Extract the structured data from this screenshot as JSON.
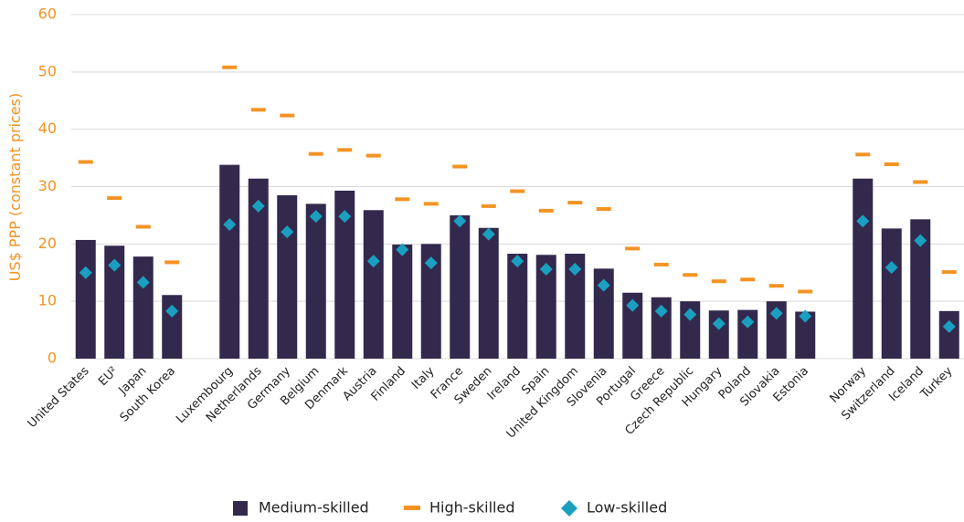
{
  "chart_data": {
    "type": "bar",
    "y_label": "US$ PPP (constant prices)",
    "categories": [
      "United States",
      "EU²",
      "Japan",
      "South Korea",
      null,
      "Luxembourg",
      "Netherlands",
      "Germany",
      "Belgium",
      "Denmark",
      "Austria",
      "Finland",
      "Italy",
      "France",
      "Sweden",
      "Ireland",
      "Spain",
      "United Kingdom",
      "Slovenia",
      "Portugal",
      "Greece",
      "Czech Republic",
      "Hungary",
      "Poland",
      "Slovakia",
      "Estonia",
      null,
      "Norway",
      "Switzerland",
      "Iceland",
      "Turkey"
    ],
    "series": [
      {
        "name": "Medium-skilled",
        "type": "bar",
        "color": "#33294d",
        "values": [
          20.7,
          19.7,
          17.8,
          11.1,
          null,
          33.8,
          31.4,
          28.5,
          27,
          29.3,
          25.9,
          19.9,
          20,
          25,
          22.8,
          18.3,
          18.1,
          18.3,
          15.7,
          11.5,
          10.7,
          10,
          8.4,
          8.5,
          10,
          8.2,
          null,
          31.4,
          22.7,
          24.3,
          8.3
        ]
      },
      {
        "name": "High-skilled",
        "type": "dash",
        "color": "#f39324",
        "values": [
          34.3,
          28,
          23,
          16.8,
          null,
          50.8,
          43.4,
          42.4,
          35.7,
          36.4,
          35.4,
          27.8,
          27,
          33.5,
          26.6,
          29.2,
          25.8,
          27.2,
          26.1,
          19.2,
          16.4,
          14.6,
          13.5,
          13.8,
          12.7,
          11.7,
          null,
          35.6,
          33.9,
          30.8,
          15.1
        ]
      },
      {
        "name": "Low-skilled",
        "type": "diamond",
        "color": "#1a9fc0",
        "values": [
          15,
          16.3,
          13.3,
          8.3,
          null,
          23.4,
          26.6,
          22.1,
          24.8,
          24.8,
          17,
          19,
          16.7,
          24,
          21.7,
          17,
          15.6,
          15.6,
          12.8,
          9.3,
          8.3,
          7.7,
          6.1,
          6.4,
          7.9,
          7.4,
          null,
          24,
          15.9,
          20.6,
          5.6
        ]
      }
    ],
    "ylim": [
      0,
      60
    ],
    "yticks": [
      0,
      10,
      20,
      30,
      40,
      50,
      60
    ],
    "grid": true,
    "axis_color": "#f39324",
    "legend": "bottom"
  }
}
